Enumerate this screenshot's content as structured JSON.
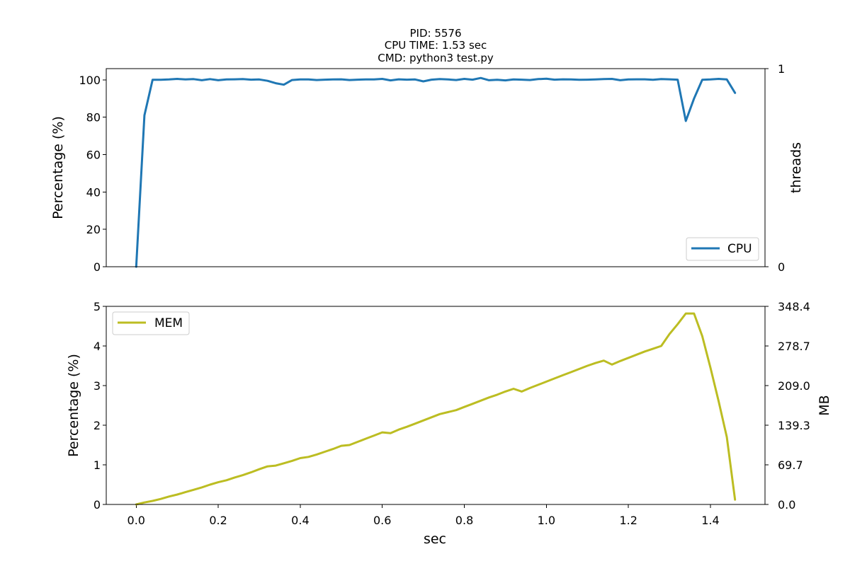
{
  "title_lines": [
    "PID: 5576",
    "CPU TIME: 1.53 sec",
    "CMD: python3 test.py"
  ],
  "chart_data": [
    {
      "type": "line",
      "id": "cpu",
      "xlabel": "",
      "ylabel": "Percentage (%)",
      "ylabel_right": "threads",
      "xlim": [
        -0.073,
        1.533
      ],
      "ylim": [
        0,
        106
      ],
      "yticks": [
        0,
        20,
        40,
        60,
        80,
        100
      ],
      "ylim_right": [
        0,
        1
      ],
      "yticks_right": [
        0,
        1
      ],
      "legend_position": "lower right",
      "series": [
        {
          "name": "CPU",
          "color": "#1f77b4",
          "x": [
            0.0,
            0.02,
            0.04,
            0.06,
            0.08,
            0.1,
            0.12,
            0.14,
            0.16,
            0.18,
            0.2,
            0.22,
            0.24,
            0.26,
            0.28,
            0.3,
            0.32,
            0.34,
            0.36,
            0.38,
            0.4,
            0.42,
            0.44,
            0.46,
            0.48,
            0.5,
            0.52,
            0.54,
            0.56,
            0.58,
            0.6,
            0.62,
            0.64,
            0.66,
            0.68,
            0.7,
            0.72,
            0.74,
            0.76,
            0.78,
            0.8,
            0.82,
            0.84,
            0.86,
            0.88,
            0.9,
            0.92,
            0.94,
            0.96,
            0.98,
            1.0,
            1.02,
            1.04,
            1.06,
            1.08,
            1.1,
            1.12,
            1.14,
            1.16,
            1.18,
            1.2,
            1.22,
            1.24,
            1.26,
            1.28,
            1.3,
            1.32,
            1.34,
            1.36,
            1.38,
            1.4,
            1.42,
            1.44,
            1.46
          ],
          "values": [
            0,
            81,
            100,
            100,
            100.2,
            100.5,
            100.2,
            100.4,
            99.8,
            100.4,
            99.8,
            100.2,
            100.3,
            100.4,
            100.1,
            100.2,
            99.5,
            98.2,
            97.4,
            99.9,
            100.2,
            100.2,
            99.9,
            100.1,
            100.2,
            100.3,
            99.9,
            100.1,
            100.2,
            100.2,
            100.5,
            99.7,
            100.3,
            100.1,
            100.2,
            99.2,
            100.1,
            100.4,
            100.2,
            99.9,
            100.5,
            100.1,
            101,
            99.8,
            100,
            99.7,
            100.2,
            100.1,
            99.9,
            100.4,
            100.6,
            100.1,
            100.3,
            100.2,
            100,
            100.1,
            100.2,
            100.4,
            100.5,
            99.8,
            100.2,
            100.3,
            100.3,
            100,
            100.4,
            100.3,
            100.1,
            78,
            90,
            100,
            100.2,
            100.5,
            100.2,
            93
          ]
        }
      ]
    },
    {
      "type": "line",
      "id": "mem",
      "xlabel": "sec",
      "ylabel": "Percentage (%)",
      "ylabel_right": "MB",
      "xlim": [
        -0.073,
        1.533
      ],
      "xticks": [
        0.0,
        0.2,
        0.4,
        0.6,
        0.8,
        1.0,
        1.2,
        1.4
      ],
      "xtick_labels": [
        "0.0",
        "0.2",
        "0.4",
        "0.6",
        "0.8",
        "1.0",
        "1.2",
        "1.4"
      ],
      "ylim": [
        0,
        5
      ],
      "yticks": [
        0,
        1,
        2,
        3,
        4,
        5
      ],
      "ylim_right": [
        0,
        348.4
      ],
      "yticks_right": [
        0.0,
        69.7,
        139.3,
        209.0,
        278.7,
        348.4
      ],
      "ytick_labels_right": [
        "0.0",
        "69.7",
        "139.3",
        "209.0",
        "278.7",
        "348.4"
      ],
      "legend_position": "upper left",
      "series": [
        {
          "name": "MEM",
          "color": "#bcbd22",
          "x": [
            0.0,
            0.02,
            0.04,
            0.06,
            0.08,
            0.1,
            0.12,
            0.14,
            0.16,
            0.18,
            0.2,
            0.22,
            0.24,
            0.26,
            0.28,
            0.3,
            0.32,
            0.34,
            0.36,
            0.38,
            0.4,
            0.42,
            0.44,
            0.46,
            0.48,
            0.5,
            0.52,
            0.54,
            0.56,
            0.58,
            0.6,
            0.62,
            0.64,
            0.66,
            0.68,
            0.7,
            0.72,
            0.74,
            0.76,
            0.78,
            0.8,
            0.82,
            0.84,
            0.86,
            0.88,
            0.9,
            0.92,
            0.94,
            0.96,
            0.98,
            1.0,
            1.02,
            1.04,
            1.06,
            1.08,
            1.1,
            1.12,
            1.14,
            1.16,
            1.18,
            1.2,
            1.22,
            1.24,
            1.26,
            1.28,
            1.3,
            1.32,
            1.34,
            1.36,
            1.38,
            1.4,
            1.42,
            1.44,
            1.46
          ],
          "values": [
            0,
            0.05,
            0.09,
            0.14,
            0.2,
            0.25,
            0.31,
            0.37,
            0.43,
            0.5,
            0.56,
            0.61,
            0.68,
            0.74,
            0.81,
            0.89,
            0.96,
            0.98,
            1.04,
            1.1,
            1.17,
            1.2,
            1.26,
            1.33,
            1.4,
            1.48,
            1.5,
            1.58,
            1.66,
            1.74,
            1.82,
            1.8,
            1.89,
            1.96,
            2.04,
            2.12,
            2.2,
            2.28,
            2.33,
            2.38,
            2.46,
            2.54,
            2.62,
            2.7,
            2.77,
            2.85,
            2.92,
            2.85,
            2.94,
            3.02,
            3.1,
            3.18,
            3.26,
            3.34,
            3.42,
            3.5,
            3.57,
            3.63,
            3.53,
            3.62,
            3.7,
            3.78,
            3.86,
            3.93,
            4.0,
            4.3,
            4.55,
            4.82,
            4.82,
            4.25,
            3.45,
            2.6,
            1.7,
            0.12
          ]
        }
      ]
    }
  ]
}
